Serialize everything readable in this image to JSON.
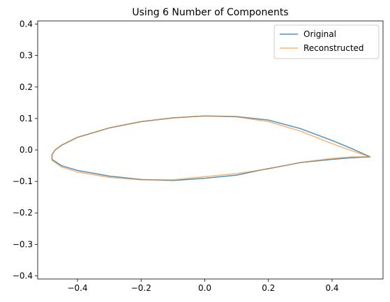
{
  "chart_data": {
    "type": "line",
    "title": "Using 6 Number of Components",
    "xlabel": "",
    "ylabel": "",
    "xlim": [
      -0.525,
      0.56
    ],
    "ylim": [
      -0.41,
      0.41
    ],
    "x_ticks": [
      -0.4,
      -0.2,
      0.0,
      0.2,
      0.4
    ],
    "x_tick_labels": [
      "−0.4",
      "−0.2",
      "0.0",
      "0.2",
      "0.4"
    ],
    "y_ticks": [
      -0.4,
      -0.3,
      -0.2,
      -0.1,
      0.0,
      0.1,
      0.2,
      0.3,
      0.4
    ],
    "y_tick_labels": [
      "−0.4",
      "−0.3",
      "−0.2",
      "−0.1",
      "0.0",
      "0.1",
      "0.2",
      "0.3",
      "0.4"
    ],
    "grid": false,
    "legend_position": "top-right",
    "series": [
      {
        "name": "Original",
        "color": "#1f77b4",
        "points": [
          [
            0.52,
            -0.022
          ],
          [
            0.46,
            -0.025
          ],
          [
            0.4,
            -0.03
          ],
          [
            0.3,
            -0.04
          ],
          [
            0.25,
            -0.05
          ],
          [
            0.18,
            -0.063
          ],
          [
            0.1,
            -0.08
          ],
          [
            0.0,
            -0.09
          ],
          [
            -0.1,
            -0.097
          ],
          [
            -0.2,
            -0.094
          ],
          [
            -0.3,
            -0.083
          ],
          [
            -0.4,
            -0.065
          ],
          [
            -0.45,
            -0.05
          ],
          [
            -0.48,
            -0.03
          ],
          [
            -0.48,
            -0.015
          ],
          [
            -0.47,
            0.0
          ],
          [
            -0.45,
            0.015
          ],
          [
            -0.4,
            0.04
          ],
          [
            -0.3,
            0.07
          ],
          [
            -0.2,
            0.09
          ],
          [
            -0.1,
            0.102
          ],
          [
            0.0,
            0.108
          ],
          [
            0.1,
            0.106
          ],
          [
            0.2,
            0.095
          ],
          [
            0.3,
            0.068
          ],
          [
            0.4,
            0.03
          ],
          [
            0.46,
            0.005
          ],
          [
            0.52,
            -0.022
          ]
        ]
      },
      {
        "name": "Reconstructed",
        "color": "#ff7f0e",
        "points": [
          [
            0.52,
            -0.022
          ],
          [
            0.46,
            -0.022
          ],
          [
            0.4,
            -0.027
          ],
          [
            0.3,
            -0.04
          ],
          [
            0.2,
            -0.06
          ],
          [
            0.1,
            -0.075
          ],
          [
            0.0,
            -0.085
          ],
          [
            -0.1,
            -0.095
          ],
          [
            -0.2,
            -0.095
          ],
          [
            -0.3,
            -0.087
          ],
          [
            -0.4,
            -0.07
          ],
          [
            -0.45,
            -0.054
          ],
          [
            -0.48,
            -0.033
          ],
          [
            -0.48,
            -0.015
          ],
          [
            -0.47,
            0.0
          ],
          [
            -0.45,
            0.015
          ],
          [
            -0.4,
            0.04
          ],
          [
            -0.3,
            0.07
          ],
          [
            -0.2,
            0.09
          ],
          [
            -0.1,
            0.102
          ],
          [
            0.0,
            0.108
          ],
          [
            0.1,
            0.105
          ],
          [
            0.2,
            0.09
          ],
          [
            0.3,
            0.06
          ],
          [
            0.4,
            0.02
          ],
          [
            0.46,
            -0.002
          ],
          [
            0.52,
            -0.022
          ]
        ]
      }
    ]
  }
}
